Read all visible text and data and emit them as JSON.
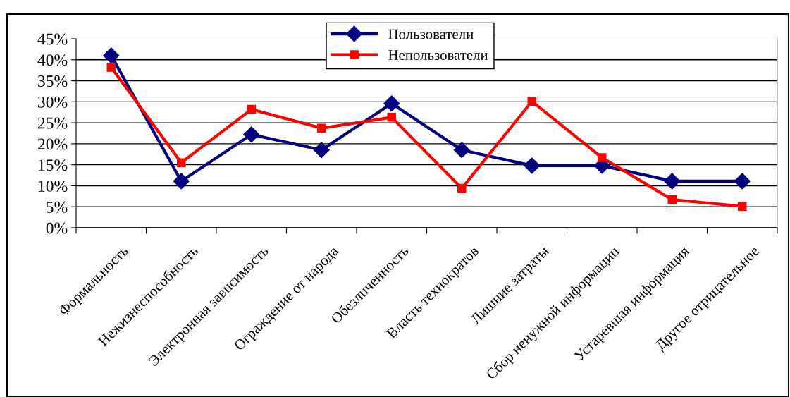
{
  "chart_data": {
    "type": "line",
    "categories": [
      "Формальность",
      "Нежизнеспособность",
      "Электронная зависимость",
      "Ограждение от народа",
      "Обезличенность",
      "Власть технократов",
      "Лишние затраты",
      "Сбор ненужной информации",
      "Устаревшая информация",
      "Другое отрицательное"
    ],
    "series": [
      {
        "name": "Пользователи",
        "color": "#000080",
        "marker": "diamond",
        "values": [
          41,
          11.1,
          22.2,
          18.5,
          29.6,
          18.5,
          14.8,
          14.8,
          11.1,
          11.1
        ]
      },
      {
        "name": "Непользователи",
        "color": "#ff0000",
        "marker": "square",
        "values": [
          38.2,
          15.5,
          28.2,
          23.7,
          26.3,
          9.4,
          30.1,
          16.7,
          6.7,
          5.1
        ]
      }
    ],
    "ylim": [
      0,
      45
    ],
    "yticks": [
      {
        "value": 0,
        "label": "0%"
      },
      {
        "value": 5,
        "label": "5%"
      },
      {
        "value": 10,
        "label": "10%"
      },
      {
        "value": 15,
        "label": "15%"
      },
      {
        "value": 20,
        "label": "20%"
      },
      {
        "value": 25,
        "label": "25%"
      },
      {
        "value": 30,
        "label": "30%"
      },
      {
        "value": 35,
        "label": "35%"
      },
      {
        "value": 40,
        "label": "40%"
      },
      {
        "value": 45,
        "label": "45%"
      }
    ],
    "grid": "y",
    "legend": "top"
  }
}
